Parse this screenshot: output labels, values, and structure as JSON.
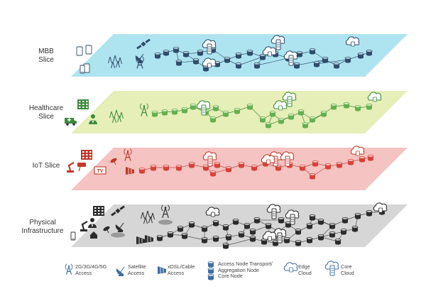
{
  "slices": [
    {
      "id": "mbb",
      "label_lines": [
        "MBB",
        "Slice"
      ],
      "fill": "#aee4f0",
      "node": "#2e4d6a",
      "accent": "#2e4d6a"
    },
    {
      "id": "healthcare",
      "label_lines": [
        "Healthcare",
        "Slice"
      ],
      "fill": "#e5efb7",
      "node": "#63b050",
      "accent": "#3c8a3c"
    },
    {
      "id": "iot",
      "label_lines": [
        "IoT Slice"
      ],
      "fill": "#f4c3c2",
      "node": "#d9413a",
      "accent": "#c0392b"
    },
    {
      "id": "physical",
      "label_lines": [
        "Physical",
        "Infrastructure"
      ],
      "fill": "#d6d6d6",
      "node": "#2b2b2b",
      "accent": "#2b2b2b"
    }
  ],
  "iot_tv_label": "TV",
  "legend": [
    {
      "icon": "antenna-icon",
      "lines": [
        "2G/3G/4G/5G",
        "Access"
      ]
    },
    {
      "icon": "satellite-dish-icon",
      "lines": [
        "Satellite",
        "Access"
      ]
    },
    {
      "icon": "xdsl-cabinet-icon",
      "lines": [
        "xDSL/Cable",
        "Access"
      ]
    },
    {
      "icon": "network-node-icon",
      "lines": [
        "Access Node Transport/",
        "Aggregation Node",
        "Core Node"
      ]
    },
    {
      "icon": "edge-cloud-icon",
      "lines": [
        "Edge",
        "Cloud"
      ]
    },
    {
      "icon": "core-cloud-icon",
      "lines": [
        "Core",
        "Cloud"
      ]
    }
  ]
}
